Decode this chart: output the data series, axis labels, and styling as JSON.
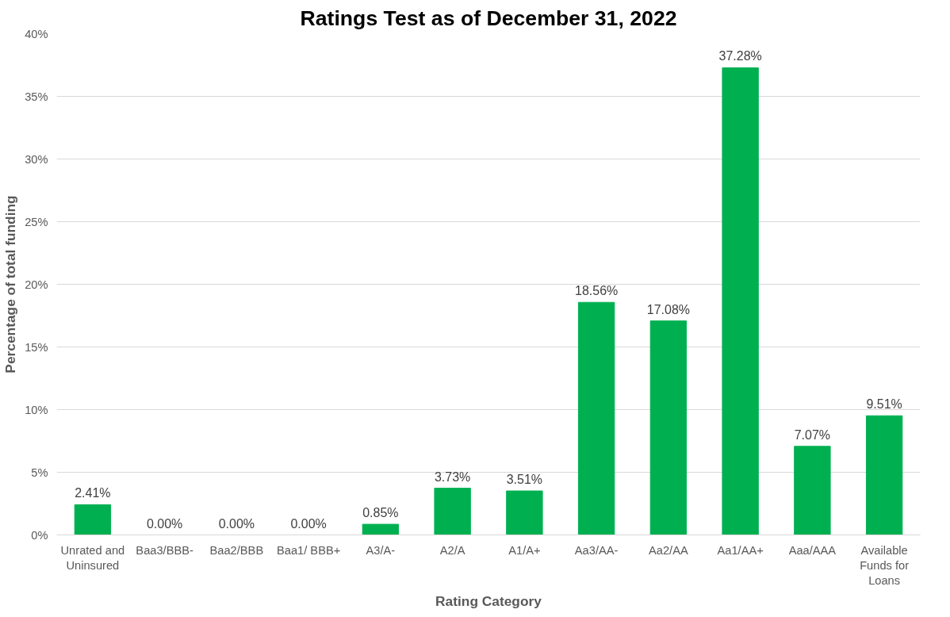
{
  "chart_data": {
    "type": "bar",
    "title": "Ratings Test as of December 31, 2022",
    "xlabel": "Rating Category",
    "ylabel": "Percentage of total funding",
    "categories": [
      "Unrated and Uninsured",
      "Baa3/BBB-",
      "Baa2/BBB",
      "Baa1/ BBB+",
      "A3/A-",
      "A2/A",
      "A1/A+",
      "Aa3/AA-",
      "Aa2/AA",
      "Aa1/AA+",
      "Aaa/AAA",
      "Available Funds for Loans"
    ],
    "values": [
      2.41,
      0.0,
      0.0,
      0.0,
      0.85,
      3.73,
      3.51,
      18.56,
      17.08,
      37.28,
      7.07,
      9.51
    ],
    "value_labels": [
      "2.41%",
      "0.00%",
      "0.00%",
      "0.00%",
      "0.85%",
      "3.73%",
      "3.51%",
      "18.56%",
      "17.08%",
      "37.28%",
      "7.07%",
      "9.51%"
    ],
    "color": "#00b050",
    "ylim": [
      0,
      40
    ],
    "yticks": [
      {
        "value": 0,
        "label": "0%"
      },
      {
        "value": 5,
        "label": "5%"
      },
      {
        "value": 10,
        "label": "10%"
      },
      {
        "value": 15,
        "label": "15%"
      },
      {
        "value": 20,
        "label": "20%"
      },
      {
        "value": 25,
        "label": "25%"
      },
      {
        "value": 30,
        "label": "30%"
      },
      {
        "value": 35,
        "label": "35%"
      },
      {
        "value": 40,
        "label": "40%"
      }
    ],
    "grid": "y"
  }
}
